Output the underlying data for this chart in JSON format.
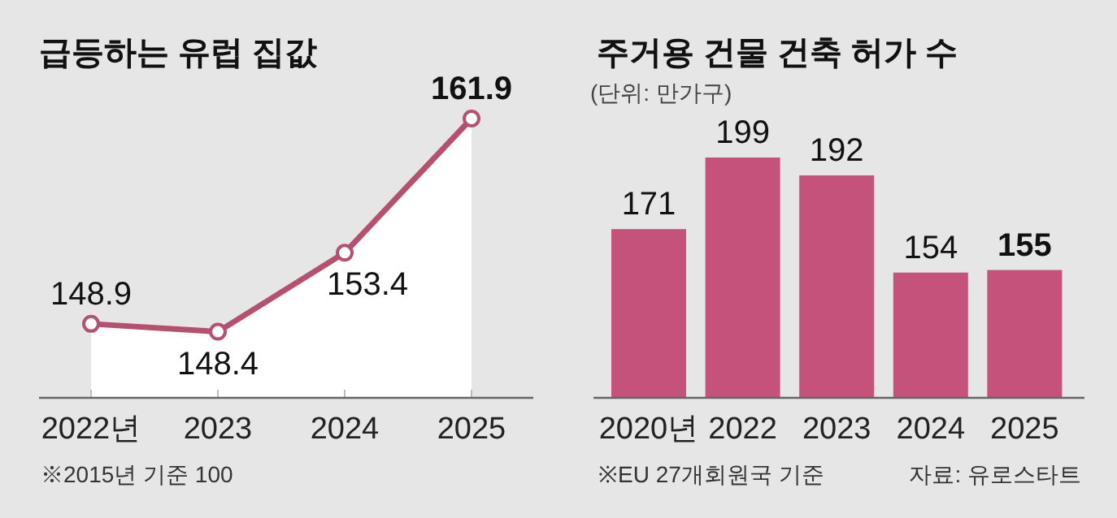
{
  "chart_data": [
    {
      "type": "area",
      "title": "급등하는 유럽 집값",
      "categories": [
        "2022년",
        "2023",
        "2024",
        "2025"
      ],
      "series": [
        {
          "color": "#b5506f",
          "values": [
            148.9,
            148.4,
            153.4,
            161.9
          ]
        }
      ],
      "data_labels": true,
      "marker": "circle",
      "annotations": [
        "※2015년 기준 100"
      ]
    },
    {
      "type": "bar",
      "title": "주거용 건물 건축 허가 수",
      "subtitle": "(단위: 만가구)",
      "categories": [
        "2020년",
        "2022",
        "2023",
        "2024",
        "2025"
      ],
      "series": [
        {
          "color": "#c4527a",
          "values": [
            171,
            199,
            192,
            154,
            155
          ]
        }
      ],
      "data_labels": true,
      "ylim": [
        105,
        199
      ],
      "annotations": [
        "※EU 27개회원국 기준",
        "자료: 유로스타트"
      ]
    }
  ]
}
